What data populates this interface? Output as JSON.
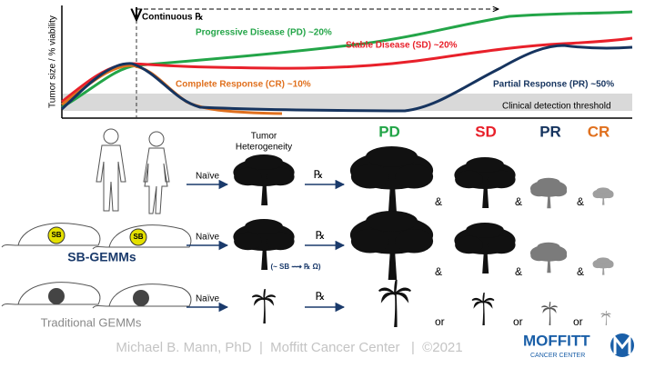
{
  "chart": {
    "y_label": "Tumor size / % viability",
    "continuous": "Continuous ℞",
    "curves": [
      {
        "label": "Progressive Disease (PD) ~20%",
        "color": "#23a548"
      },
      {
        "label": "Stable Disease (SD) ~20%",
        "color": "#e8202a"
      },
      {
        "label": "Complete Response (CR) ~10%",
        "color": "#e0701e"
      },
      {
        "label": "Partial Response (PR) ~50%",
        "color": "#16345f"
      }
    ],
    "threshold": "Clinical detection threshold"
  },
  "columns": {
    "heterogeneity": [
      "Tumor",
      "Heterogeneity"
    ],
    "outcomes": [
      {
        "label": "PD",
        "color": "#23a548"
      },
      {
        "label": "SD",
        "color": "#e8202a"
      },
      {
        "label": "PR",
        "color": "#16345f"
      },
      {
        "label": "CR",
        "color": "#e0701e"
      }
    ]
  },
  "rows": [
    {
      "start": "Naïve",
      "treatment": "℞",
      "connectors": [
        "&",
        "&",
        "&"
      ]
    },
    {
      "badges": [
        "SB",
        "SB"
      ],
      "label": "SB-GEMMs",
      "start": "Naïve",
      "treatment": "℞",
      "treatment_note": "(~ SB ⟿ ℞ Ω)",
      "connectors": [
        "&",
        "&",
        "&"
      ]
    },
    {
      "label": "Traditional GEMMs",
      "start": "Naïve",
      "treatment": "℞",
      "connectors": [
        "or",
        "or",
        "or"
      ]
    }
  ],
  "footer": "Michael B. Mann, PhD  |  Moffitt Cancer Center   |  ©2021",
  "logo": {
    "name": "MOFFITT",
    "sub": "CANCER CENTER"
  }
}
